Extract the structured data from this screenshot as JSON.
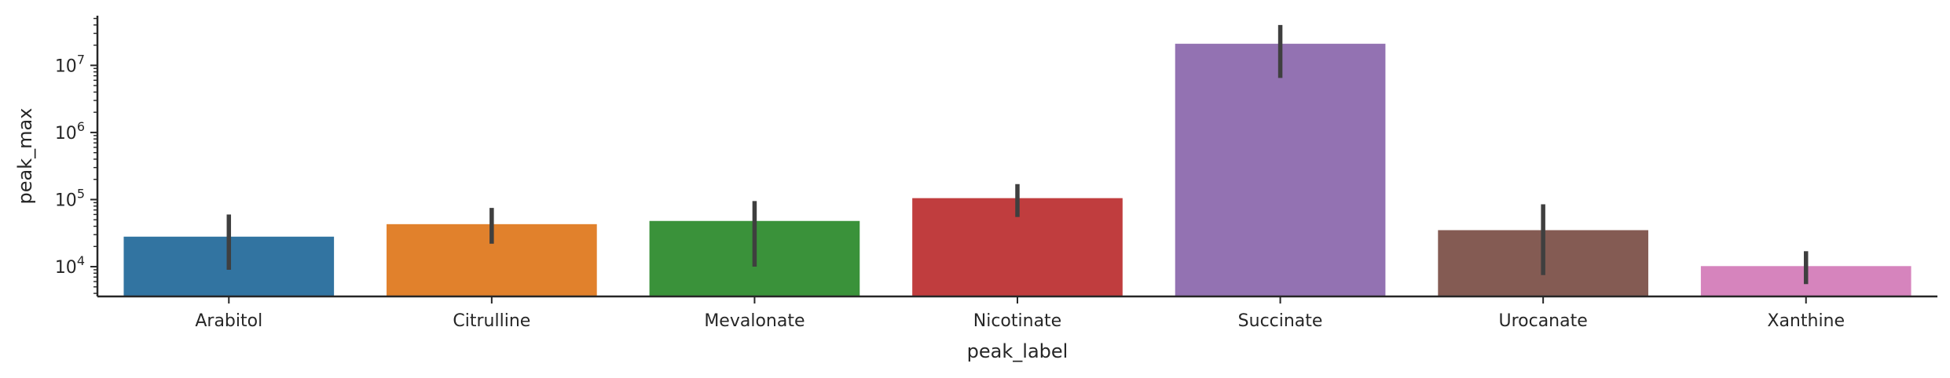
{
  "chart_data": {
    "type": "bar",
    "xlabel": "peak_label",
    "ylabel": "peak_max",
    "yscale": "log",
    "ylim": [
      3600,
      55000000
    ],
    "y_ticks": [
      {
        "value": 10000,
        "base": "10",
        "exp": "4"
      },
      {
        "value": 100000,
        "base": "10",
        "exp": "5"
      },
      {
        "value": 1000000,
        "base": "10",
        "exp": "6"
      },
      {
        "value": 10000000,
        "base": "10",
        "exp": "7"
      }
    ],
    "categories": [
      "Arabitol",
      "Citrulline",
      "Mevalonate",
      "Nicotinate",
      "Succinate",
      "Urocanate",
      "Xanthine"
    ],
    "values": [
      28000,
      43000,
      48000,
      105000,
      21000000,
      35000,
      10200
    ],
    "error_low": [
      9000,
      22000,
      10000,
      55000,
      6500000,
      7500,
      5500
    ],
    "error_high": [
      60000,
      75000,
      95000,
      170000,
      40000000,
      85000,
      17000
    ],
    "colors": [
      "#3274a1",
      "#e1812c",
      "#3a923a",
      "#c03d3e",
      "#9372b2",
      "#845b53",
      "#d684bd"
    ],
    "error_bar_color": "#3f3f3f",
    "grid": false,
    "legend": "none"
  }
}
